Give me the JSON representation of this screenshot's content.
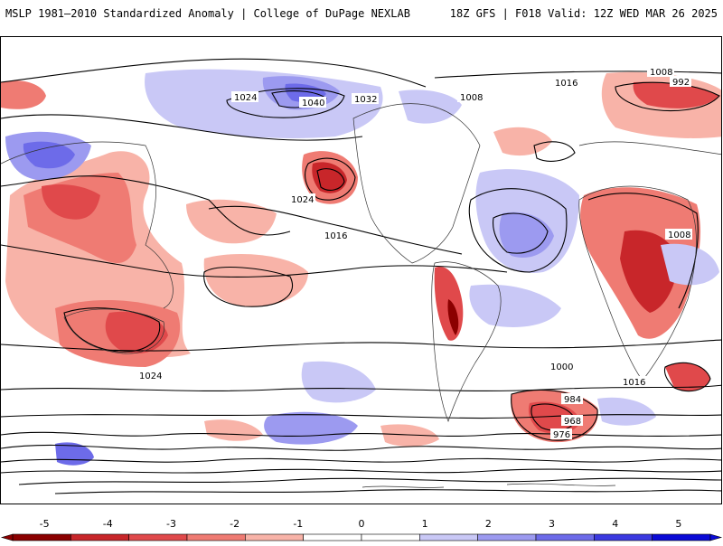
{
  "header": {
    "left_title": "MSLP 1981–2010 Standardized Anomaly | College of DuPage NEXLAB",
    "right_title": "18Z GFS | F018 Valid: 12Z WED MAR 26 2025"
  },
  "map": {
    "contour_labels": [
      "1024",
      "1032",
      "1040",
      "1016",
      "1008",
      "1000",
      "992",
      "984",
      "976",
      "968"
    ],
    "label_sample": [
      {
        "text": "1024"
      },
      {
        "text": "1008"
      },
      {
        "text": "1016"
      },
      {
        "text": "992"
      },
      {
        "text": "1032"
      },
      {
        "text": "1040"
      },
      {
        "text": "1008"
      },
      {
        "text": "1024"
      },
      {
        "text": "1016"
      },
      {
        "text": "1000"
      },
      {
        "text": "984"
      },
      {
        "text": "976"
      },
      {
        "text": "968"
      },
      {
        "text": "1016"
      },
      {
        "text": "1008"
      },
      {
        "text": "1024"
      }
    ]
  },
  "colorbar": {
    "ticks": [
      "-5",
      "-4",
      "-3",
      "-2",
      "-1",
      "0",
      "1",
      "2",
      "3",
      "4",
      "5"
    ],
    "colors": [
      "#8b0000",
      "#c8262a",
      "#e0494b",
      "#ef7b73",
      "#f8b3a8",
      "#ffffff",
      "#ffffff",
      "#c9c8f6",
      "#9c9af0",
      "#6d6be9",
      "#3b39e0",
      "#0a0ad6"
    ]
  }
}
